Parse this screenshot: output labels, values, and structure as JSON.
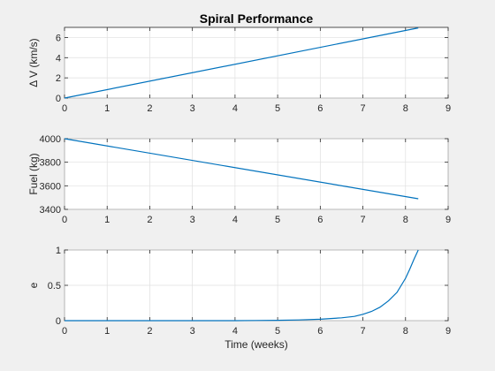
{
  "chart_data": [
    {
      "type": "line",
      "title": "Spiral Performance",
      "xlabel": "",
      "ylabel": "Δ V (km/s)",
      "xlim": [
        0,
        9
      ],
      "ylim": [
        0,
        7
      ],
      "xticks": [
        0,
        1,
        2,
        3,
        4,
        5,
        6,
        7,
        8,
        9
      ],
      "yticks": [
        0,
        2,
        4,
        6
      ],
      "grid": true,
      "series": [
        {
          "color": "#0072BD",
          "x": [
            0,
            8.3
          ],
          "y": [
            0,
            6.95
          ]
        }
      ]
    },
    {
      "type": "line",
      "title": "",
      "xlabel": "",
      "ylabel": "Fuel (kg)",
      "xlim": [
        0,
        9
      ],
      "ylim": [
        3400,
        4000
      ],
      "xticks": [
        0,
        1,
        2,
        3,
        4,
        5,
        6,
        7,
        8,
        9
      ],
      "yticks": [
        3400,
        3600,
        3800,
        4000
      ],
      "grid": true,
      "series": [
        {
          "color": "#0072BD",
          "x": [
            0,
            8.3
          ],
          "y": [
            4000,
            3490
          ]
        }
      ]
    },
    {
      "type": "line",
      "title": "",
      "xlabel": "Time (weeks)",
      "ylabel": "e",
      "xlim": [
        0,
        9
      ],
      "ylim": [
        0,
        1
      ],
      "xticks": [
        0,
        1,
        2,
        3,
        4,
        5,
        6,
        7,
        8,
        9
      ],
      "yticks": [
        0,
        0.5,
        1
      ],
      "grid": true,
      "series": [
        {
          "color": "#0072BD",
          "x": [
            0,
            1,
            2,
            3,
            4,
            4.5,
            5,
            5.5,
            6,
            6.5,
            6.8,
            7,
            7.2,
            7.4,
            7.6,
            7.8,
            8,
            8.1,
            8.2,
            8.3
          ],
          "y": [
            0,
            0,
            0,
            0,
            0,
            0.003,
            0.005,
            0.01,
            0.02,
            0.04,
            0.06,
            0.09,
            0.13,
            0.19,
            0.28,
            0.4,
            0.6,
            0.73,
            0.87,
            1.0
          ]
        }
      ]
    }
  ]
}
